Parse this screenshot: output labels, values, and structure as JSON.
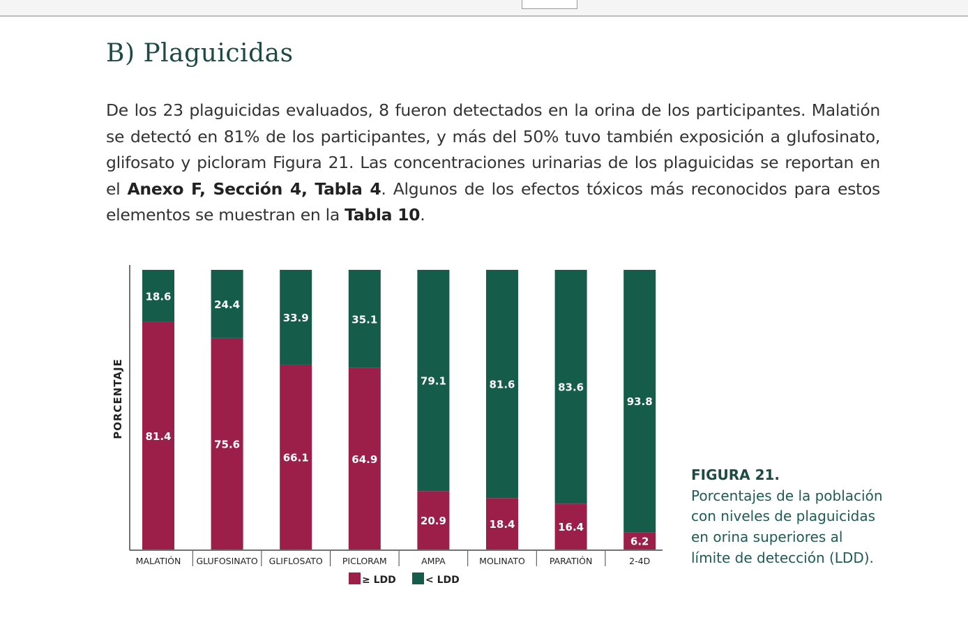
{
  "section_title": "B) Plaguicidas",
  "paragraph": {
    "p1": "De los 23 plaguicidas evaluados, 8 fueron detectados en la orina de los participantes. Malatión se detectó en 81% de los participantes, y más del 50% tuvo también exposición a glufosinato, glifosato y picloram Figura 21. Las concentraciones urinarias de los plaguicidas se reportan en el ",
    "b1": "Anexo F, Sección 4, Tabla 4",
    "p2": ". Algunos de los efectos tóxicos más reconocidos para estos elementos se muestran en la ",
    "b2": "Tabla 10",
    "p3": "."
  },
  "caption": {
    "figure": "FIGURA 21.",
    "text": "Porcentajes de la población con niveles de plaguicidas en orina superiores al límite de detección (LDD)."
  },
  "chart_data": {
    "type": "bar",
    "stacked": true,
    "ylabel": "PORCENTAJE",
    "ylim": [
      0,
      100
    ],
    "categories": [
      "MALATIÓN",
      "GLUFOSINATO",
      "GLIFLOSATO",
      "PICLORAM",
      "AMPA",
      "MOLINATO",
      "PARATIÓN",
      "2-4D"
    ],
    "series": [
      {
        "name": "≥ LDD",
        "color": "#9b1f48",
        "values": [
          81.4,
          75.6,
          66.1,
          64.9,
          20.9,
          18.4,
          16.4,
          6.2
        ]
      },
      {
        "name": "< LDD",
        "color": "#155c4b",
        "values": [
          18.6,
          24.4,
          33.9,
          35.1,
          79.1,
          81.6,
          83.6,
          93.8
        ]
      }
    ],
    "legend": "bottom"
  }
}
